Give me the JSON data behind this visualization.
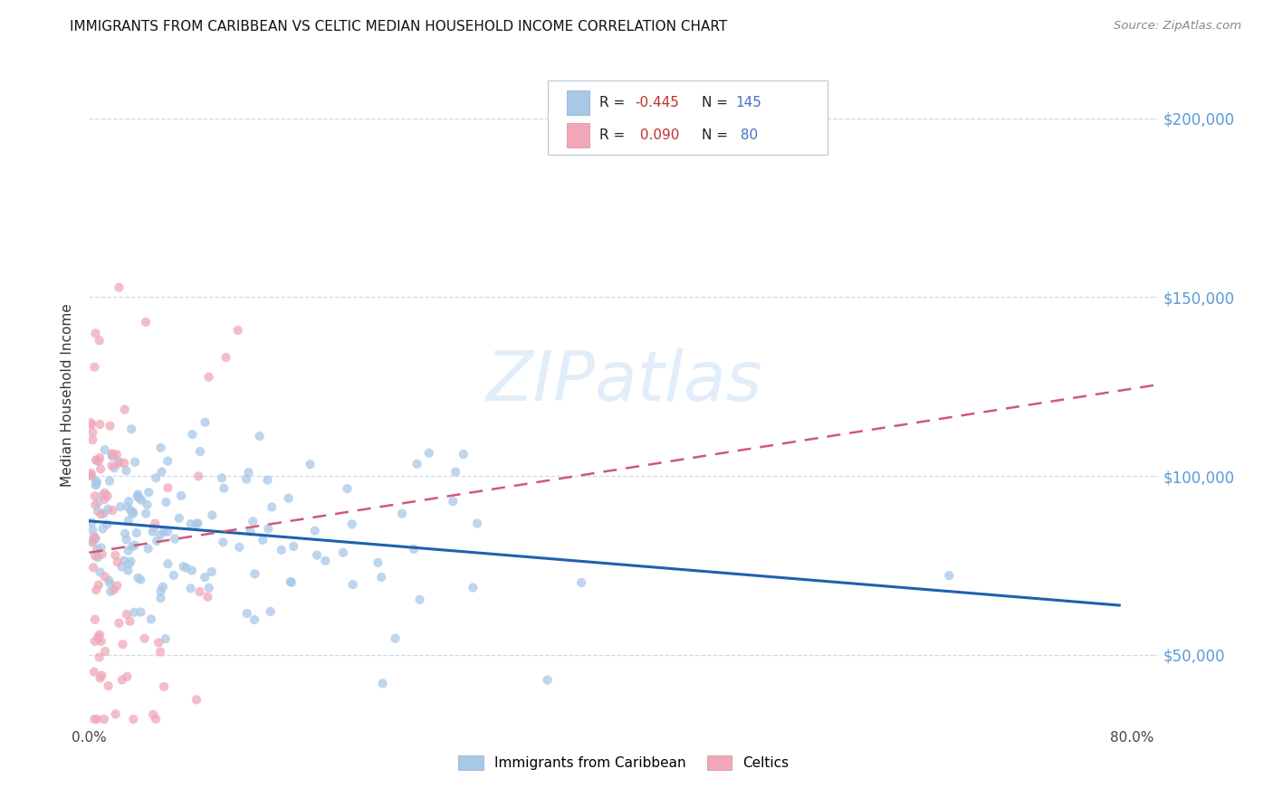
{
  "title": "IMMIGRANTS FROM CARIBBEAN VS CELTIC MEDIAN HOUSEHOLD INCOME CORRELATION CHART",
  "source": "Source: ZipAtlas.com",
  "ylabel": "Median Household Income",
  "yticks": [
    50000,
    100000,
    150000,
    200000
  ],
  "ytick_labels": [
    "$50,000",
    "$100,000",
    "$150,000",
    "$200,000"
  ],
  "watermark": "ZIPatlas",
  "color_caribbean": "#a8c8e8",
  "color_celtic": "#f0a8b8",
  "color_trendline_caribbean": "#2060b0",
  "color_trendline_celtic": "#d05878",
  "background_color": "#ffffff",
  "scatter_size": 55,
  "scatter_alpha": 0.75,
  "xlim": [
    0.0,
    0.82
  ],
  "ylim": [
    30000,
    215000
  ],
  "legend_color_r": "#c03030",
  "legend_color_n": "#4472c4",
  "grid_color": "#d0d8e8",
  "right_tick_color": "#5b9bd5"
}
